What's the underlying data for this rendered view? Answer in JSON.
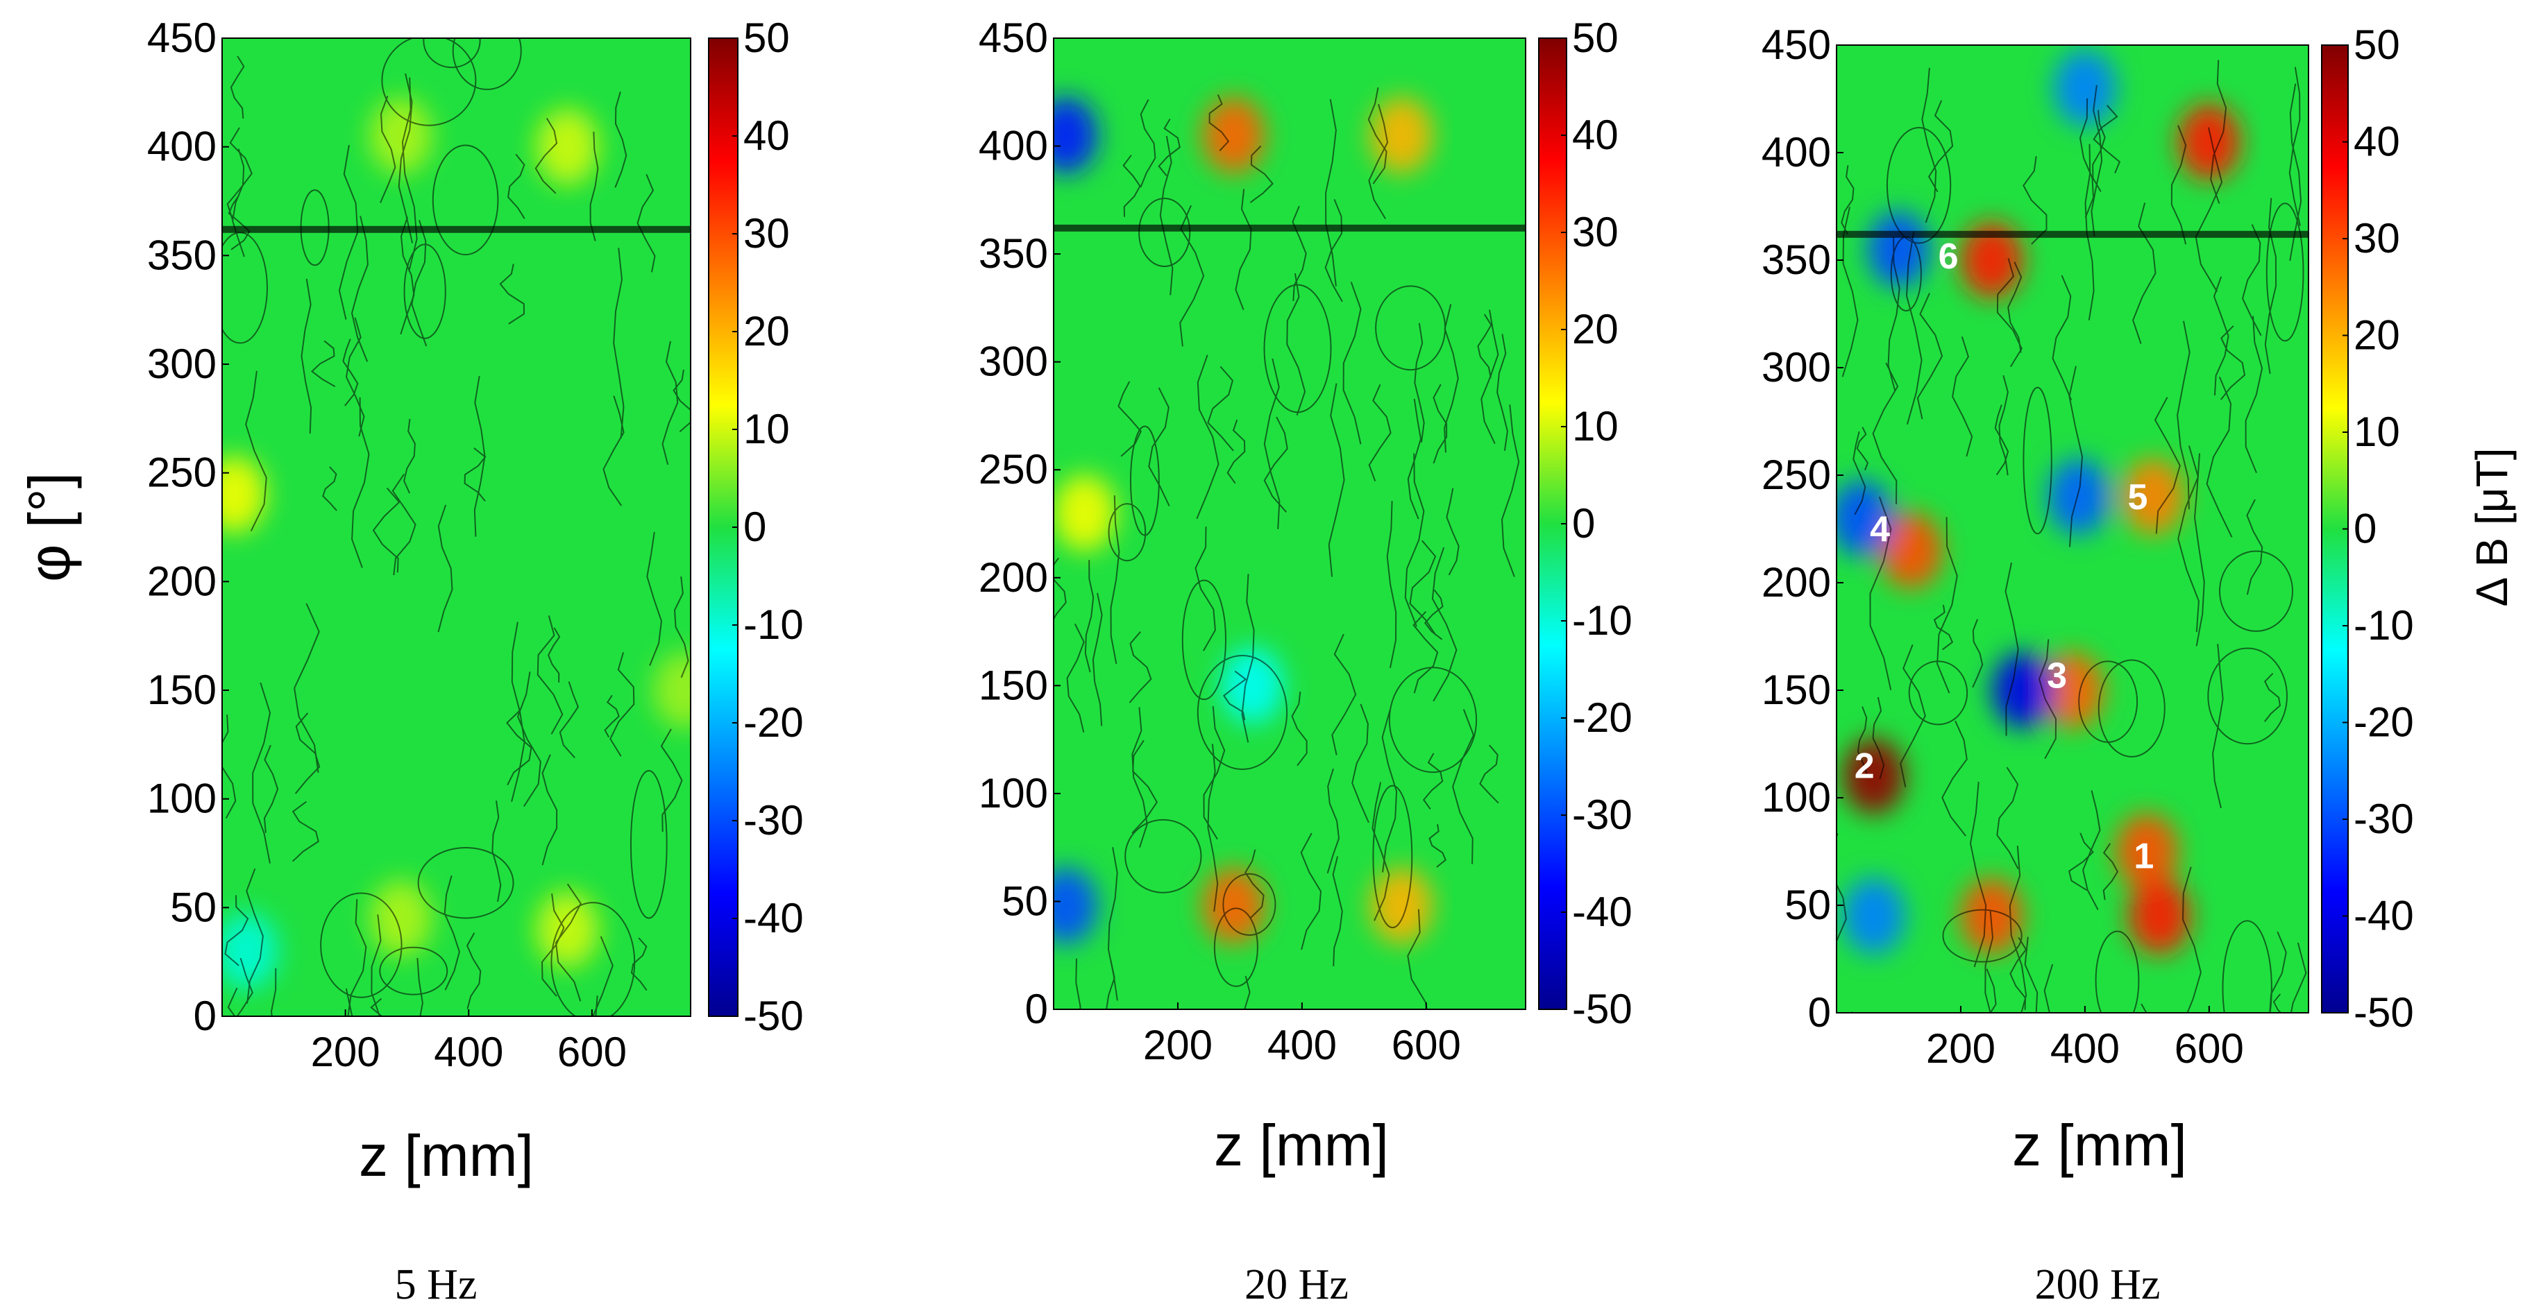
{
  "chart_data": [
    {
      "type": "heatmap",
      "caption": "5 Hz",
      "xlabel": "z [mm]",
      "ylabel": "φ [°]",
      "colorbar_label": "",
      "x_ticks": [
        200,
        400,
        600
      ],
      "y_ticks": [
        0,
        50,
        100,
        150,
        200,
        250,
        300,
        350,
        400,
        450
      ],
      "colorbar_ticks": [
        50,
        40,
        30,
        20,
        10,
        0,
        -10,
        -20,
        -30,
        -40,
        -50
      ],
      "xlim": [
        0,
        760
      ],
      "ylim": [
        0,
        450
      ],
      "clim": [
        -50,
        50
      ],
      "features": [
        {
          "z": 290,
          "phi": 405,
          "value": 8
        },
        {
          "z": 290,
          "phi": 45,
          "value": 8
        },
        {
          "z": 560,
          "phi": 400,
          "value": 10
        },
        {
          "z": 560,
          "phi": 40,
          "value": 10
        },
        {
          "z": 20,
          "phi": 240,
          "value": 12
        },
        {
          "z": 750,
          "phi": 150,
          "value": 7
        },
        {
          "z": 40,
          "phi": 30,
          "value": -10
        }
      ],
      "markers": []
    },
    {
      "type": "heatmap",
      "caption": "20 Hz",
      "xlabel": "z [mm]",
      "ylabel": "",
      "colorbar_label": "",
      "x_ticks": [
        200,
        400,
        600
      ],
      "y_ticks": [
        0,
        50,
        100,
        150,
        200,
        250,
        300,
        350,
        400,
        450
      ],
      "colorbar_ticks": [
        50,
        40,
        30,
        20,
        10,
        0,
        -10,
        -20,
        -30,
        -40,
        -50
      ],
      "xlim": [
        0,
        760
      ],
      "ylim": [
        0,
        450
      ],
      "clim": [
        -50,
        50
      ],
      "features": [
        {
          "z": 290,
          "phi": 405,
          "value": 28
        },
        {
          "z": 290,
          "phi": 48,
          "value": 28
        },
        {
          "z": 560,
          "phi": 405,
          "value": 20
        },
        {
          "z": 560,
          "phi": 48,
          "value": 20
        },
        {
          "z": 20,
          "phi": 405,
          "value": -35
        },
        {
          "z": 20,
          "phi": 48,
          "value": -30
        },
        {
          "z": 50,
          "phi": 230,
          "value": 12
        },
        {
          "z": 320,
          "phi": 150,
          "value": -12
        }
      ],
      "markers": []
    },
    {
      "type": "heatmap",
      "caption": "200 Hz",
      "xlabel": "z [mm]",
      "ylabel": "",
      "colorbar_label": "Δ B [μT]",
      "x_ticks": [
        200,
        400,
        600
      ],
      "y_ticks": [
        0,
        50,
        100,
        150,
        200,
        250,
        300,
        350,
        400,
        450
      ],
      "colorbar_ticks": [
        50,
        40,
        30,
        20,
        10,
        0,
        -10,
        -20,
        -30,
        -40,
        -50
      ],
      "xlim": [
        0,
        760
      ],
      "ylim": [
        0,
        450
      ],
      "clim": [
        -50,
        50
      ],
      "features": [
        {
          "z": 60,
          "phi": 110,
          "value": 48
        },
        {
          "z": 380,
          "phi": 150,
          "value": 28
        },
        {
          "z": 300,
          "phi": 150,
          "value": -40
        },
        {
          "z": 120,
          "phi": 215,
          "value": 30
        },
        {
          "z": 40,
          "phi": 230,
          "value": -30
        },
        {
          "z": 390,
          "phi": 240,
          "value": -28
        },
        {
          "z": 510,
          "phi": 240,
          "value": 25
        },
        {
          "z": 250,
          "phi": 350,
          "value": 35
        },
        {
          "z": 100,
          "phi": 355,
          "value": -30
        },
        {
          "z": 500,
          "phi": 75,
          "value": 30
        },
        {
          "z": 520,
          "phi": 45,
          "value": 35
        },
        {
          "z": 600,
          "phi": 405,
          "value": 35
        },
        {
          "z": 400,
          "phi": 430,
          "value": -25
        },
        {
          "z": 60,
          "phi": 45,
          "value": -25
        },
        {
          "z": 250,
          "phi": 45,
          "value": 30
        }
      ],
      "markers": [
        {
          "label": "1",
          "z": 495,
          "phi": 73
        },
        {
          "label": "2",
          "z": 45,
          "phi": 115
        },
        {
          "label": "3",
          "z": 355,
          "phi": 157
        },
        {
          "label": "4",
          "z": 70,
          "phi": 225
        },
        {
          "label": "5",
          "z": 485,
          "phi": 240
        },
        {
          "label": "6",
          "z": 180,
          "phi": 352
        }
      ]
    }
  ]
}
